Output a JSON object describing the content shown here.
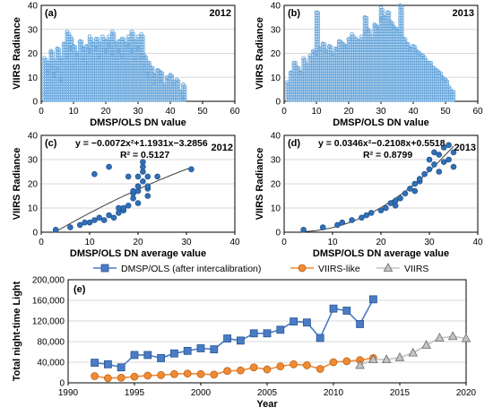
{
  "colors": {
    "dense": "#6aa8dc",
    "fitpt": "#2f6fb6",
    "dmsp": "#4a7cc4",
    "viirslike": "#f08a33",
    "viirs": "#c4c4c4",
    "grid": "#d9d9d9",
    "curve": "#404040"
  },
  "chart_data": [
    {
      "id": "a",
      "type": "scatter",
      "panel_label": "(a)",
      "year_label": "2012",
      "xlabel": "DMSP/OLS DN value",
      "ylabel": "VIIRS Radiance",
      "xlim": [
        0,
        60
      ],
      "ylim": [
        0,
        40
      ],
      "xticks": [
        "0",
        "10",
        "20",
        "30",
        "40",
        "50",
        "60"
      ],
      "yticks": [
        "0",
        "10",
        "20",
        "30",
        "40"
      ],
      "grid": true,
      "points": [
        [
          1,
          18
        ],
        [
          1,
          3
        ],
        [
          2,
          16
        ],
        [
          2,
          12
        ],
        [
          3,
          21
        ],
        [
          3,
          14
        ],
        [
          4,
          11
        ],
        [
          4,
          17
        ],
        [
          5,
          13
        ],
        [
          5,
          22
        ],
        [
          6,
          18
        ],
        [
          6,
          9
        ],
        [
          7,
          24
        ],
        [
          7,
          16
        ],
        [
          8,
          29
        ],
        [
          8,
          19
        ],
        [
          9,
          22
        ],
        [
          9,
          27
        ],
        [
          10,
          14
        ],
        [
          10,
          23
        ],
        [
          11,
          20
        ],
        [
          11,
          17
        ],
        [
          12,
          25
        ],
        [
          12,
          16
        ],
        [
          13,
          22
        ],
        [
          13,
          18
        ],
        [
          14,
          23
        ],
        [
          14,
          15
        ],
        [
          15,
          21
        ],
        [
          15,
          27
        ],
        [
          16,
          24
        ],
        [
          16,
          17
        ],
        [
          17,
          26
        ],
        [
          17,
          22
        ],
        [
          18,
          24
        ],
        [
          18,
          19
        ],
        [
          19,
          27
        ],
        [
          19,
          16
        ],
        [
          20,
          25
        ],
        [
          20,
          21
        ],
        [
          21,
          23
        ],
        [
          21,
          27
        ],
        [
          22,
          29
        ],
        [
          22,
          20
        ],
        [
          23,
          24
        ],
        [
          23,
          18
        ],
        [
          24,
          25
        ],
        [
          24,
          21
        ],
        [
          25,
          26
        ],
        [
          25,
          19
        ],
        [
          26,
          24
        ],
        [
          26,
          16
        ],
        [
          27,
          23
        ],
        [
          27,
          27
        ],
        [
          28,
          29
        ],
        [
          28,
          21
        ],
        [
          29,
          25
        ],
        [
          29,
          18
        ],
        [
          30,
          27
        ],
        [
          30,
          22
        ],
        [
          31,
          28
        ],
        [
          31,
          19
        ],
        [
          32,
          19
        ],
        [
          32,
          14
        ],
        [
          33,
          16
        ],
        [
          33,
          11
        ],
        [
          34,
          14
        ],
        [
          35,
          11
        ],
        [
          35,
          8
        ],
        [
          36,
          13
        ],
        [
          37,
          9
        ],
        [
          37,
          12
        ],
        [
          38,
          7
        ],
        [
          39,
          10
        ],
        [
          40,
          6
        ],
        [
          40,
          11
        ],
        [
          41,
          8
        ],
        [
          42,
          6
        ],
        [
          42,
          9
        ],
        [
          43,
          4
        ],
        [
          44,
          7
        ],
        [
          44,
          3
        ],
        [
          44,
          1
        ]
      ]
    },
    {
      "id": "b",
      "type": "scatter",
      "panel_label": "(b)",
      "year_label": "2013",
      "xlabel": "DMSP/OLS DN value",
      "ylabel": "VIIRS Radiance",
      "xlim": [
        0,
        60
      ],
      "ylim": [
        0,
        40
      ],
      "xticks": [
        "0",
        "10",
        "20",
        "30",
        "40",
        "50",
        "60"
      ],
      "yticks": [
        "0",
        "10",
        "20",
        "30",
        "40"
      ],
      "grid": true,
      "points": [
        [
          1,
          8
        ],
        [
          2,
          12
        ],
        [
          3,
          16
        ],
        [
          4,
          14
        ],
        [
          5,
          12
        ],
        [
          6,
          18
        ],
        [
          7,
          15
        ],
        [
          8,
          19
        ],
        [
          9,
          21
        ],
        [
          10,
          20
        ],
        [
          11,
          22
        ],
        [
          12,
          24
        ],
        [
          13,
          21
        ],
        [
          14,
          23
        ],
        [
          15,
          20
        ],
        [
          16,
          22
        ],
        [
          17,
          25
        ],
        [
          18,
          24
        ],
        [
          19,
          23
        ],
        [
          20,
          26
        ],
        [
          21,
          28
        ],
        [
          22,
          26
        ],
        [
          23,
          25
        ],
        [
          24,
          27
        ],
        [
          25,
          29
        ],
        [
          26,
          30
        ],
        [
          27,
          27
        ],
        [
          28,
          32
        ],
        [
          29,
          31
        ],
        [
          30,
          34
        ],
        [
          31,
          35
        ],
        [
          32,
          37
        ],
        [
          33,
          33
        ],
        [
          34,
          31
        ],
        [
          35,
          30
        ],
        [
          36,
          28
        ],
        [
          37,
          26
        ],
        [
          38,
          24
        ],
        [
          39,
          22
        ],
        [
          40,
          23
        ],
        [
          41,
          21
        ],
        [
          42,
          20
        ],
        [
          43,
          19
        ],
        [
          44,
          17
        ],
        [
          45,
          16
        ],
        [
          46,
          14
        ],
        [
          47,
          13
        ],
        [
          48,
          12
        ],
        [
          49,
          10
        ],
        [
          50,
          9
        ],
        [
          51,
          6
        ],
        [
          52,
          4
        ],
        [
          10,
          37
        ],
        [
          25,
          35
        ],
        [
          30,
          39
        ],
        [
          36,
          40
        ]
      ]
    },
    {
      "id": "c",
      "type": "scatter",
      "panel_label": "(c)",
      "year_label": "2012",
      "equation": "y = −0.0072x²+1.1931x−3.2856",
      "r2": "R² = 0.5127",
      "fit": {
        "a": -0.0072,
        "b": 1.1931,
        "c": -3.2856,
        "x_from": 3,
        "x_to": 31
      },
      "xlabel": "DMSP/OLS DN average value",
      "ylabel": "VIIRS Radiance",
      "xlim": [
        0,
        40
      ],
      "ylim": [
        0,
        40
      ],
      "xticks": [
        "0",
        "10",
        "20",
        "30",
        "40"
      ],
      "yticks": [
        "0",
        "10",
        "20",
        "30",
        "40"
      ],
      "grid": true,
      "points": [
        [
          3,
          1
        ],
        [
          6,
          2
        ],
        [
          8,
          3
        ],
        [
          9,
          4
        ],
        [
          10,
          4
        ],
        [
          11,
          5
        ],
        [
          11,
          24
        ],
        [
          12,
          6
        ],
        [
          13,
          5
        ],
        [
          14,
          7
        ],
        [
          14,
          27
        ],
        [
          15,
          6
        ],
        [
          16,
          8
        ],
        [
          16,
          10
        ],
        [
          17,
          9
        ],
        [
          17,
          10
        ],
        [
          18,
          11
        ],
        [
          18,
          23
        ],
        [
          19,
          14
        ],
        [
          19,
          16
        ],
        [
          19,
          17
        ],
        [
          20,
          12
        ],
        [
          20,
          17
        ],
        [
          20,
          19
        ],
        [
          20,
          23
        ],
        [
          21,
          21
        ],
        [
          21,
          25
        ],
        [
          21,
          27
        ],
        [
          21,
          29
        ],
        [
          22,
          15
        ],
        [
          22,
          18
        ],
        [
          22,
          19
        ],
        [
          22,
          23
        ],
        [
          24,
          23
        ],
        [
          31,
          26
        ]
      ]
    },
    {
      "id": "d",
      "type": "scatter",
      "panel_label": "(d)",
      "year_label": "2013",
      "equation": "y = 0.0346x²−0.2108x+0.5518",
      "r2": "R² = 0.8799",
      "fit": {
        "a": 0.0346,
        "b": -0.2108,
        "c": 0.5518,
        "x_from": 4,
        "x_to": 35
      },
      "xlabel": "DMSP/OLS DN average value",
      "ylabel": "VIIRS Radiance",
      "xlim": [
        0,
        40
      ],
      "ylim": [
        0,
        40
      ],
      "xticks": [
        "0",
        "10",
        "20",
        "30",
        "40"
      ],
      "yticks": [
        "0",
        "10",
        "20",
        "30",
        "40"
      ],
      "grid": true,
      "points": [
        [
          4,
          1
        ],
        [
          8,
          2
        ],
        [
          11,
          3
        ],
        [
          12,
          4
        ],
        [
          14,
          5
        ],
        [
          16,
          6
        ],
        [
          17,
          7
        ],
        [
          18,
          8
        ],
        [
          20,
          9
        ],
        [
          21,
          10
        ],
        [
          22,
          12
        ],
        [
          23,
          11
        ],
        [
          23,
          13
        ],
        [
          24,
          14
        ],
        [
          25,
          16
        ],
        [
          26,
          18
        ],
        [
          27,
          17
        ],
        [
          27,
          20
        ],
        [
          28,
          21
        ],
        [
          28,
          22
        ],
        [
          29,
          24
        ],
        [
          30,
          26
        ],
        [
          30,
          30
        ],
        [
          31,
          28
        ],
        [
          31,
          33
        ],
        [
          32,
          25
        ],
        [
          32,
          32
        ],
        [
          33,
          29
        ],
        [
          33,
          35
        ],
        [
          34,
          30
        ],
        [
          34,
          36
        ],
        [
          35,
          33
        ],
        [
          35,
          27
        ]
      ]
    },
    {
      "id": "e",
      "type": "line",
      "panel_label": "(e)",
      "xlabel": "Year",
      "ylabel": "Total night-time Light",
      "xlim": [
        1990,
        2020
      ],
      "ylim": [
        0,
        200000
      ],
      "xticks": [
        "1990",
        "1995",
        "2000",
        "2005",
        "2010",
        "2015",
        "2020"
      ],
      "yticks": [
        "0",
        "40,000",
        "80,000",
        "120,000",
        "160,000",
        "200,000"
      ],
      "grid": true,
      "legend_position": "top",
      "series": [
        {
          "name": "DMSP/OLS (after intercalibration)",
          "marker": "square",
          "x": [
            1992,
            1993,
            1994,
            1995,
            1996,
            1997,
            1998,
            1999,
            2000,
            2001,
            2002,
            2003,
            2004,
            2005,
            2006,
            2007,
            2008,
            2009,
            2010,
            2011,
            2012,
            2013
          ],
          "values": [
            39000,
            36000,
            30000,
            54000,
            54000,
            48000,
            57000,
            62000,
            67000,
            65000,
            86000,
            82000,
            96000,
            96000,
            103000,
            119000,
            117000,
            87000,
            144000,
            140000,
            114000,
            162000
          ]
        },
        {
          "name": "VIIRS-like",
          "marker": "circle",
          "x": [
            1992,
            1993,
            1994,
            1995,
            1996,
            1997,
            1998,
            1999,
            2000,
            2001,
            2002,
            2003,
            2004,
            2005,
            2006,
            2007,
            2008,
            2009,
            2010,
            2011,
            2012,
            2013
          ],
          "values": [
            13000,
            9000,
            10000,
            12000,
            14000,
            15000,
            17000,
            18000,
            17000,
            16000,
            23000,
            24000,
            30000,
            26000,
            32000,
            36000,
            34000,
            27000,
            40000,
            42000,
            44000,
            48000
          ]
        },
        {
          "name": "VIIRS",
          "marker": "triangle",
          "x": [
            2012,
            2013,
            2014,
            2015,
            2016,
            2017,
            2018,
            2019,
            2020
          ],
          "values": [
            34000,
            45000,
            45000,
            49000,
            58000,
            73000,
            87000,
            90000,
            86000
          ]
        }
      ]
    }
  ]
}
